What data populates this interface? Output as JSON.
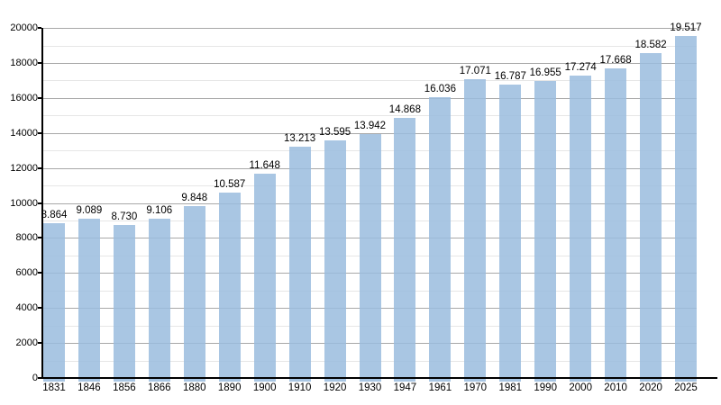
{
  "chart_data": {
    "type": "bar",
    "title": "",
    "xlabel": "",
    "ylabel": "",
    "categories": [
      "1831",
      "1846",
      "1856",
      "1866",
      "1880",
      "1890",
      "1900",
      "1910",
      "1920",
      "1930",
      "1947",
      "1961",
      "1970",
      "1981",
      "1990",
      "2000",
      "2010",
      "2020",
      "2025"
    ],
    "values": [
      8864,
      9089,
      8730,
      9106,
      9848,
      10587,
      11648,
      13213,
      13595,
      13942,
      14868,
      16036,
      17071,
      16787,
      16955,
      17274,
      17668,
      18582,
      19517
    ],
    "value_labels": [
      "8.864",
      "9.089",
      "8.730",
      "9.106",
      "9.848",
      "10.587",
      "11.648",
      "13.213",
      "13.595",
      "13.942",
      "14.868",
      "16.036",
      "17.071",
      "16.787",
      "16.955",
      "17.274",
      "17.668",
      "18.582",
      "19.517"
    ],
    "ylim": [
      0,
      20000
    ],
    "y_tick_labels": [
      "0",
      "2000",
      "4000",
      "6000",
      "8000",
      "10000",
      "12000",
      "14000",
      "16000",
      "18000",
      "20000"
    ],
    "y_major_step": 2000,
    "y_minor_step": 1000,
    "grid": "horizontal-major-and-minor",
    "legend_position": "none",
    "colors": {
      "bar_fill": "#a9c6e3",
      "grid_major": "#a8a8a8",
      "grid_minor": "#e6e6e6",
      "axis": "#000000",
      "text": "#000000",
      "background": "#ffffff"
    }
  }
}
